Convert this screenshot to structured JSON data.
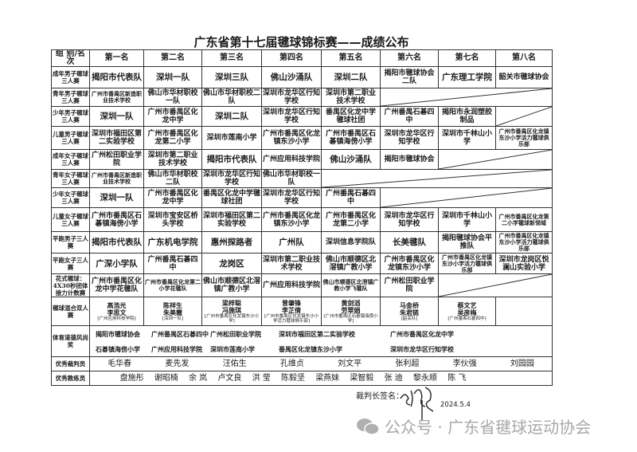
{
  "title": "广东省第十七届毽球锦标赛——成绩公布",
  "header": [
    "组 别/名次",
    "第一名",
    "第二名",
    "第三名",
    "第四名",
    "第五名",
    "第六名",
    "第七名",
    "第八名"
  ],
  "rows": [
    {
      "label": "成年男子毽球三人赛",
      "cells": [
        "揭阳市代表队",
        "深圳一队",
        "深圳三队",
        "佛山沙涌队",
        "深圳二队",
        "揭阳市毽球协会二队",
        "广东理工学院",
        "韶关市毽球协会"
      ]
    },
    {
      "label": "青年男子毽球三人赛",
      "cells": [
        "广州市番禺区新造职业技术学校",
        "佛山市华材职校一队",
        "佛山市华材职校二队",
        "深圳市龙华区行知学校",
        "深圳市第二职业技术学校"
      ]
    },
    {
      "label": "少年男子毽球三人赛",
      "cells": [
        "深圳一队",
        "广州市番禺区化龙中学",
        "深圳二队",
        "深圳市龙华区行知学校",
        "番禺区化龙中学毽球社团",
        "广州番禺石碁四中",
        "揭阳市永润塑胶制品"
      ]
    },
    {
      "label": "儿童男子毽球三人赛",
      "cells": [
        "深圳市福田区第二实验学校",
        "广州市番禺区化龙第二小学",
        "深圳市莲南小学",
        "广州市番禺区化龙镇东沙小学",
        "广州市番禺区石碁镇海傍小学",
        "深圳市龙华区行知学校",
        "深圳市千林山小学",
        "广州市番禺区化龙镇东沙小学活力毽球俱乐部"
      ]
    },
    {
      "label": "成年女子毽球三人赛",
      "cells": [
        "广州松田职业学院",
        "深圳市第二职业技术学校",
        "揭阳市代表队",
        "广州应用科技学院",
        "佛山沙涌队",
        "揭阳市毽球协会"
      ]
    },
    {
      "label": "青年女子毽球三人赛",
      "cells": [
        "广州市番禺区新造职业技术学校",
        "佛山市华材职校二队",
        "深圳市龙华区行知学校",
        "佛山市华材职校一队"
      ]
    },
    {
      "label": "少年女子毽球三人赛",
      "cells": [
        "深圳一队",
        "广州市番禺区化龙中学",
        "番禺区化龙中学毽球社团",
        "深圳市龙华区行知学校",
        "广州番禺石碁四中"
      ]
    },
    {
      "label": "儿童女子毽球三人赛",
      "cells": [
        "广州市番禺区石碁镇海傍小学",
        "深圳市宝安区桥头学校",
        "深圳市福田区第二实验学校",
        "广州市番禺区化龙镇东沙小学",
        "广州市番禺区化龙第二小学",
        "深圳市龙华区行知学校",
        "深圳市千林山小学",
        "广州市番禺区化龙第二小学毽球新领域"
      ]
    },
    {
      "label": "平跑男子三人赛",
      "cells": [
        "揭阳市代表队",
        "广东机电学院",
        "惠州探路者",
        "广州队",
        "深圳信息学院队",
        "长美毽队",
        "揭阳毽球协会平推队",
        "广州市番禺区化龙镇东沙小学活力毽球俱乐部"
      ]
    },
    {
      "label": "平跑女子三人赛",
      "cells": [
        "广深小学队",
        "广州番禺石碁四中",
        "龙岗区",
        "深圳市第二职业技术学校",
        "佛山市顺德区北滘镇广教小学",
        "广州市番禺区化龙镇东沙小学",
        "广州市番禺区化龙镇东沙小学活力毽球俱乐部",
        "深圳市龙岗区悦澜山实验小学"
      ]
    },
    {
      "label": "花式毽球：4X30秒团体接力计数赛",
      "cells": [
        "广州市番禺区化龙中学花毽队",
        "广州市番禺区化龙第二小学花毽队",
        "佛山市顺德区北滘镇广教小学",
        "广州应用科技学院",
        "佛山市顺德区北滘镇广教小学飞毽队",
        "广州松田职业学院"
      ]
    }
  ],
  "doubles": {
    "label": "毽球混合双人赛",
    "entries": [
      {
        "p1": "高浩光",
        "p2": "李思文",
        "team": "[广州应用科技学院]"
      },
      {
        "p1": "陈祥生",
        "p2": "朱美霞",
        "team": "[深圳一队]"
      },
      {
        "p1": "梁梓聪",
        "p2": "冯施琪",
        "team": "[广州市番禺区化龙镇东沙小学]"
      },
      {
        "p1": "曾肇锋",
        "p2": "李芷倩",
        "team": "[广州市番禺区化龙镇东沙小学活力毽球俱乐部]"
      },
      {
        "p1": "黄剑滔",
        "p2": "劳翠娟",
        "team": "[广州市番禺区石碁镇海傍小学]"
      },
      {
        "p1": "马金桥",
        "p2": "朱君链",
        "team": "[韶关队]"
      },
      {
        "p1": "蔡文艺",
        "p2": "吴彦梅",
        "team": "[广州番禺石碁四中]"
      }
    ]
  },
  "sportsmanship": {
    "label": "体育道德风尚奖",
    "line1": [
      "揭阳市毽球协会",
      "广州番禺区石碁四中",
      "广州松田职业学院",
      "深圳市福田区第二实验学校",
      "广州市番禺区化龙中学"
    ],
    "line2": [
      "石碁镇海傍小学",
      "广州应用科技学院",
      "深圳市莲南小学",
      "番禺区化龙镇东沙小学",
      "深圳市龙华区行知学校"
    ]
  },
  "referees": {
    "label": "优秀裁判员",
    "names": [
      "毛华春",
      "麦先发",
      "汪佑生",
      "孔维贞",
      "刘文平",
      "张利超",
      "李伙强",
      "刘园园"
    ]
  },
  "coaches": {
    "label": "优秀教练员",
    "names": [
      "盘施彤",
      "谢昭楠",
      "余 岚",
      "卢文良",
      "洪 莹",
      "陈毅坚",
      "梁燕妹",
      "梁智毅",
      "张 迪",
      "黎永顺",
      "陈 飞"
    ]
  },
  "footer": {
    "sign_label": "裁判长签名：",
    "signature": "毛华春",
    "date": "2024.5.4"
  },
  "watermark": {
    "icon": "wechat-icon",
    "text": "公众号 · 广东省毽球运动协会"
  }
}
